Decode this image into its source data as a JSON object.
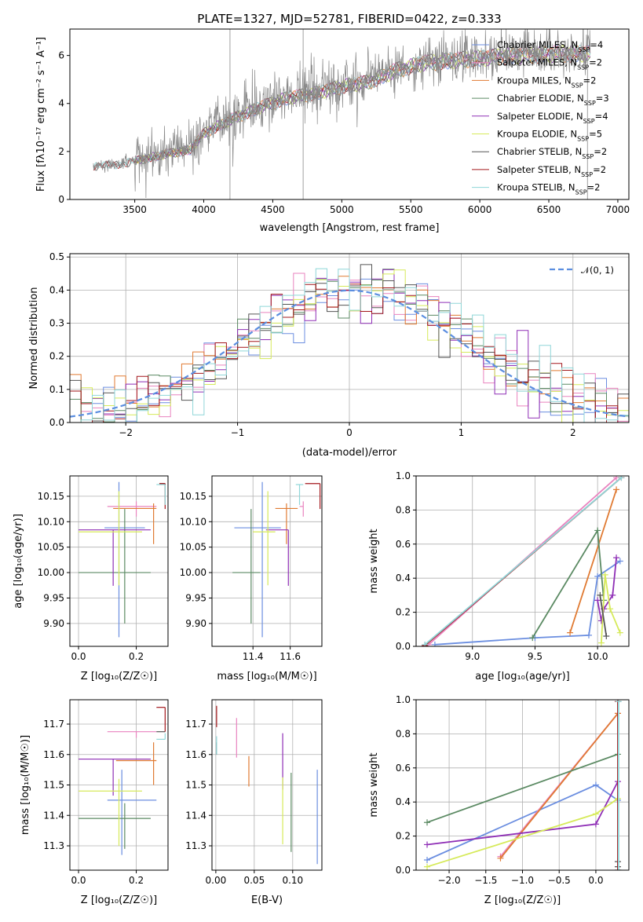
{
  "figure": {
    "title": "PLATE=1327, MJD=52781, FIBERID=0422, z=0.333"
  },
  "colors": {
    "Chabrier MILES": "#6b8ee0",
    "Salpeter MILES": "#e983bf",
    "Kroupa MILES": "#e07a32",
    "Chabrier ELODIE": "#5b8a63",
    "Salpeter ELODIE": "#8f2fb6",
    "Kroupa ELODIE": "#d6ea5a",
    "Chabrier STELIB": "#555555",
    "Salpeter STELIB": "#a3171b",
    "Kroupa STELIB": "#8fd6d8",
    "data": "#888888",
    "normal": "#5b8ee0"
  },
  "models": [
    {
      "name": "Chabrier MILES",
      "nssp": "4"
    },
    {
      "name": "Salpeter MILES",
      "nssp": "2"
    },
    {
      "name": "Kroupa MILES",
      "nssp": "2"
    },
    {
      "name": "Chabrier ELODIE",
      "nssp": "3"
    },
    {
      "name": "Salpeter ELODIE",
      "nssp": "4"
    },
    {
      "name": "Kroupa ELODIE",
      "nssp": "5"
    },
    {
      "name": "Chabrier STELIB",
      "nssp": "2"
    },
    {
      "name": "Salpeter STELIB",
      "nssp": "2"
    },
    {
      "name": "Kroupa STELIB",
      "nssp": "2"
    }
  ],
  "chart_data": [
    {
      "id": "spectrum",
      "type": "line",
      "xlabel": "wavelength [Angstrom, rest frame]",
      "ylabel": "Flux [fλ10⁻¹⁷ erg cm⁻² s⁻¹ A⁻¹]",
      "xlim": [
        3030,
        7080
      ],
      "ylim": [
        0,
        7.1
      ],
      "xticks": [
        "3500",
        "4000",
        "4500",
        "5000",
        "5500",
        "6000",
        "6500",
        "7000"
      ],
      "yticks": [
        "0",
        "2",
        "4",
        "6"
      ],
      "grid": false,
      "legend": "top-right",
      "data_range": [
        3200,
        6800
      ],
      "continuum": [
        [
          3200,
          1.4
        ],
        [
          3400,
          1.5
        ],
        [
          3550,
          1.7
        ],
        [
          3700,
          1.9
        ],
        [
          3900,
          2.1
        ],
        [
          4000,
          2.8
        ],
        [
          4200,
          3.4
        ],
        [
          4400,
          3.9
        ],
        [
          4600,
          4.3
        ],
        [
          4800,
          4.5
        ],
        [
          5000,
          4.8
        ],
        [
          5200,
          5.0
        ],
        [
          5400,
          5.5
        ],
        [
          5600,
          5.8
        ],
        [
          5800,
          5.9
        ],
        [
          6000,
          6.0
        ],
        [
          6200,
          6.1
        ],
        [
          6400,
          6.15
        ],
        [
          6600,
          6.2
        ],
        [
          6800,
          6.2
        ]
      ],
      "model_start": [
        3500,
        3500,
        3500,
        3500,
        3500,
        3500,
        3200,
        3200,
        3200
      ]
    },
    {
      "id": "residuals",
      "type": "histogram",
      "xlabel": "(data-model)/error",
      "ylabel": "Normed distribution",
      "xlim": [
        -2.5,
        2.5
      ],
      "ylim": [
        0,
        0.51
      ],
      "xticks": [
        "−2",
        "−1",
        "0",
        "1",
        "2"
      ],
      "xtick_values": [
        -2,
        -1,
        0,
        1,
        2
      ],
      "yticks": [
        "0.0",
        "0.1",
        "0.2",
        "0.3",
        "0.4",
        "0.5"
      ],
      "grid": true,
      "legend": "top-right",
      "normal_label": "𝒩(0, 1)",
      "bin_width": 0.1
    },
    {
      "id": "age-vs-Z",
      "type": "errorbar",
      "xlabel": "Z [log₁₀(Z/Z☉)]",
      "ylabel": "age  [log₁₀(age/yr)]",
      "xlim": [
        -0.03,
        0.31
      ],
      "ylim": [
        9.855,
        10.19
      ],
      "xticks": [
        "0.0",
        "0.2"
      ],
      "xtick_values": [
        0,
        0.2
      ],
      "yticks": [
        "9.90",
        "9.95",
        "10.00",
        "10.05",
        "10.10",
        "10.15"
      ],
      "ytick_values": [
        9.9,
        9.95,
        10.0,
        10.05,
        10.1,
        10.15
      ],
      "points": [
        {
          "model": "Chabrier MILES",
          "x": 0.14,
          "xerr": [
            0.05,
            0.09
          ],
          "y": 10.088,
          "yerr": [
            0.215,
            0.09
          ]
        },
        {
          "model": "Salpeter MILES",
          "x": 0.2,
          "xerr": [
            0.1,
            0.07
          ],
          "y": 10.13,
          "yerr": [
            0.02,
            0.01
          ]
        },
        {
          "model": "Kroupa MILES",
          "x": 0.26,
          "xerr": [
            0.14,
            0.01
          ],
          "y": 10.126,
          "yerr": [
            0.07,
            0.01
          ]
        },
        {
          "model": "Chabrier ELODIE",
          "x": 0.16,
          "xerr": [
            0.16,
            0.09
          ],
          "y": 10.0,
          "yerr": [
            0.1,
            0.125
          ]
        },
        {
          "model": "Salpeter ELODIE",
          "x": 0.12,
          "xerr": [
            0.12,
            0.13
          ],
          "y": 10.084,
          "yerr": [
            0.11,
            0.0
          ]
        },
        {
          "model": "Kroupa ELODIE",
          "x": 0.14,
          "xerr": [
            0.14,
            0.08
          ],
          "y": 10.08,
          "yerr": [
            0.105,
            0.08
          ]
        },
        {
          "model": "Chabrier STELIB",
          "x": 0.3,
          "xerr": [
            0.02,
            0.0
          ],
          "y": 10.175,
          "yerr": [
            0.0,
            0.0
          ]
        },
        {
          "model": "Salpeter STELIB",
          "x": 0.3,
          "xerr": [
            0.02,
            0.0
          ],
          "y": 10.175,
          "yerr": [
            0.05,
            0.0
          ]
        },
        {
          "model": "Kroupa STELIB",
          "x": 0.3,
          "xerr": [
            0.03,
            0.0
          ],
          "y": 10.173,
          "yerr": [
            0.04,
            0.0
          ]
        }
      ]
    },
    {
      "id": "age-vs-mass",
      "type": "errorbar",
      "xlabel": "mass [log₁₀(M/M☉)]",
      "ylabel": "",
      "xlim": [
        11.18,
        11.77
      ],
      "ylim": [
        9.855,
        10.19
      ],
      "xticks": [
        "11.4",
        "11.6"
      ],
      "xtick_values": [
        11.4,
        11.6
      ],
      "yticks": [
        "9.90",
        "9.95",
        "10.00",
        "10.05",
        "10.10",
        "10.15"
      ],
      "ytick_values": [
        9.9,
        9.95,
        10.0,
        10.05,
        10.1,
        10.15
      ],
      "points": [
        {
          "model": "Chabrier MILES",
          "x": 11.45,
          "xerr": [
            0.15,
            0.1
          ],
          "y": 10.088,
          "yerr": [
            0.215,
            0.09
          ]
        },
        {
          "model": "Salpeter MILES",
          "x": 11.67,
          "xerr": [
            0.02,
            0.0
          ],
          "y": 10.13,
          "yerr": [
            0.02,
            0.01
          ]
        },
        {
          "model": "Kroupa MILES",
          "x": 11.58,
          "xerr": [
            0.06,
            0.06
          ],
          "y": 10.126,
          "yerr": [
            0.07,
            0.01
          ]
        },
        {
          "model": "Chabrier ELODIE",
          "x": 11.39,
          "xerr": [
            0.1,
            0.05
          ],
          "y": 10.0,
          "yerr": [
            0.1,
            0.125
          ]
        },
        {
          "model": "Salpeter ELODIE",
          "x": 11.59,
          "xerr": [
            0.12,
            0.0
          ],
          "y": 10.084,
          "yerr": [
            0.11,
            0.0
          ]
        },
        {
          "model": "Kroupa ELODIE",
          "x": 11.48,
          "xerr": [
            0.08,
            0.04
          ],
          "y": 10.08,
          "yerr": [
            0.105,
            0.08
          ]
        },
        {
          "model": "Chabrier STELIB",
          "x": 11.68,
          "xerr": [
            0.0,
            0.0
          ],
          "y": 10.175,
          "yerr": [
            0.0,
            0.0
          ]
        },
        {
          "model": "Salpeter STELIB",
          "x": 11.76,
          "xerr": [
            0.08,
            0.0
          ],
          "y": 10.175,
          "yerr": [
            0.05,
            0.0
          ]
        },
        {
          "model": "Kroupa STELIB",
          "x": 11.65,
          "xerr": [
            0.02,
            0.02
          ],
          "y": 10.173,
          "yerr": [
            0.04,
            0.0
          ]
        }
      ]
    },
    {
      "id": "weight-vs-age",
      "type": "line",
      "xlabel": "age  [log₁₀(age/yr)]",
      "ylabel": "mass weight",
      "xlim": [
        8.55,
        10.25
      ],
      "ylim": [
        0,
        1.0
      ],
      "xticks": [
        "9.0",
        "9.5",
        "10.0"
      ],
      "xtick_values": [
        9.0,
        9.5,
        10.0
      ],
      "yticks": [
        "0.0",
        "0.2",
        "0.4",
        "0.6",
        "0.8",
        "1.0"
      ],
      "ytick_values": [
        0,
        0.2,
        0.4,
        0.6,
        0.8,
        1.0
      ],
      "grid": true,
      "series": [
        {
          "model": "Chabrier MILES",
          "x": [
            8.7,
            9.5,
            9.93,
            10.0,
            10.18
          ],
          "y": [
            0.01,
            0.05,
            0.065,
            0.41,
            0.5
          ]
        },
        {
          "model": "Salpeter MILES",
          "x": [
            8.65,
            10.15
          ],
          "y": [
            0.01,
            0.99
          ]
        },
        {
          "model": "Kroupa MILES",
          "x": [
            9.78,
            10.15
          ],
          "y": [
            0.08,
            0.92
          ]
        },
        {
          "model": "Chabrier ELODIE",
          "x": [
            9.48,
            10.0,
            10.05
          ],
          "y": [
            0.05,
            0.68,
            0.27
          ]
        },
        {
          "model": "Salpeter ELODIE",
          "x": [
            10.0,
            10.03,
            10.05,
            10.12,
            10.15
          ],
          "y": [
            0.27,
            0.15,
            0.22,
            0.3,
            0.52
          ]
        },
        {
          "model": "Kroupa ELODIE",
          "x": [
            10.03,
            10.06,
            10.1,
            10.18
          ],
          "y": [
            0.02,
            0.42,
            0.22,
            0.08
          ]
        },
        {
          "model": "Chabrier STELIB",
          "x": [
            10.02,
            10.07
          ],
          "y": [
            0.3,
            0.06
          ]
        },
        {
          "model": "Salpeter STELIB",
          "x": [
            8.62,
            10.19
          ],
          "y": [
            0.005,
            0.99
          ]
        },
        {
          "model": "Kroupa STELIB",
          "x": [
            8.62,
            10.19
          ],
          "y": [
            0.01,
            0.99
          ]
        }
      ]
    },
    {
      "id": "mass-vs-Z",
      "type": "errorbar",
      "xlabel": "Z [log₁₀(Z/Z☉)]",
      "ylabel": "mass [log₁₀(M/M☉)]",
      "xlim": [
        -0.03,
        0.31
      ],
      "ylim": [
        11.22,
        11.78
      ],
      "xticks": [
        "0.0",
        "0.2"
      ],
      "xtick_values": [
        0,
        0.2
      ],
      "yticks": [
        "11.3",
        "11.4",
        "11.5",
        "11.6",
        "11.7"
      ],
      "ytick_values": [
        11.3,
        11.4,
        11.5,
        11.6,
        11.7
      ],
      "points": [
        {
          "model": "Chabrier MILES",
          "x": 0.15,
          "xerr": [
            0.05,
            0.12
          ],
          "y": 11.45,
          "yerr": [
            0.18,
            0.1
          ]
        },
        {
          "model": "Salpeter MILES",
          "x": 0.2,
          "xerr": [
            0.1,
            0.07
          ],
          "y": 11.675,
          "yerr": [
            0.02,
            0.0
          ]
        },
        {
          "model": "Kroupa MILES",
          "x": 0.26,
          "xerr": [
            0.13,
            0.01
          ],
          "y": 11.58,
          "yerr": [
            0.08,
            0.06
          ]
        },
        {
          "model": "Chabrier ELODIE",
          "x": 0.16,
          "xerr": [
            0.16,
            0.09
          ],
          "y": 11.39,
          "yerr": [
            0.1,
            0.05
          ]
        },
        {
          "model": "Salpeter ELODIE",
          "x": 0.12,
          "xerr": [
            0.12,
            0.13
          ],
          "y": 11.585,
          "yerr": [
            0.12,
            0.0
          ]
        },
        {
          "model": "Kroupa ELODIE",
          "x": 0.14,
          "xerr": [
            0.14,
            0.08
          ],
          "y": 11.48,
          "yerr": [
            0.18,
            0.04
          ]
        },
        {
          "model": "Chabrier STELIB",
          "x": 0.3,
          "xerr": [
            0.03,
            0.0
          ],
          "y": 11.675,
          "yerr": [
            0.0,
            0.0
          ]
        },
        {
          "model": "Salpeter STELIB",
          "x": 0.3,
          "xerr": [
            0.03,
            0.0
          ],
          "y": 11.755,
          "yerr": [
            0.08,
            0.0
          ]
        },
        {
          "model": "Kroupa STELIB",
          "x": 0.3,
          "xerr": [
            0.03,
            0.0
          ],
          "y": 11.65,
          "yerr": [
            0.0,
            0.02
          ]
        }
      ]
    },
    {
      "id": "mass-vs-EBV",
      "type": "errorbar",
      "xlabel": "E(B-V)",
      "ylabel": "",
      "xlim": [
        -0.005,
        0.138
      ],
      "ylim": [
        11.22,
        11.78
      ],
      "xticks": [
        "0.00",
        "0.05",
        "0.10"
      ],
      "xtick_values": [
        0,
        0.05,
        0.1
      ],
      "yticks": [
        "11.3",
        "11.4",
        "11.5",
        "11.6",
        "11.7"
      ],
      "ytick_values": [
        11.3,
        11.4,
        11.5,
        11.6,
        11.7
      ],
      "points": [
        {
          "model": "Chabrier MILES",
          "x": 0.132,
          "xerr": [
            0,
            0
          ],
          "y": 11.4,
          "yerr": [
            0.16,
            0.15
          ]
        },
        {
          "model": "Salpeter MILES",
          "x": 0.027,
          "xerr": [
            0,
            0
          ],
          "y": 11.65,
          "yerr": [
            0.06,
            0.07
          ]
        },
        {
          "model": "Kroupa MILES",
          "x": 0.043,
          "xerr": [
            0,
            0
          ],
          "y": 11.545,
          "yerr": [
            0.05,
            0.05
          ]
        },
        {
          "model": "Chabrier ELODIE",
          "x": 0.098,
          "xerr": [
            0,
            0
          ],
          "y": 11.45,
          "yerr": [
            0.17,
            0.09
          ]
        },
        {
          "model": "Salpeter ELODIE",
          "x": 0.087,
          "xerr": [
            0,
            0
          ],
          "y": 11.575,
          "yerr": [
            0.09,
            0.095
          ]
        },
        {
          "model": "Kroupa ELODIE",
          "x": 0.087,
          "xerr": [
            0,
            0
          ],
          "y": 11.425,
          "yerr": [
            0.12,
            0.1
          ]
        },
        {
          "model": "Chabrier STELIB",
          "x": 0.001,
          "xerr": [
            0,
            0
          ],
          "y": 11.62,
          "yerr": [
            0.02,
            0.02
          ]
        },
        {
          "model": "Salpeter STELIB",
          "x": 0.001,
          "xerr": [
            0,
            0
          ],
          "y": 11.72,
          "yerr": [
            0.03,
            0.04
          ]
        },
        {
          "model": "Kroupa STELIB",
          "x": 0.001,
          "xerr": [
            0,
            0
          ],
          "y": 11.63,
          "yerr": [
            0.03,
            0.03
          ]
        }
      ]
    },
    {
      "id": "weight-vs-Z",
      "type": "line",
      "xlabel": "Z [log₁₀(Z/Z☉)]",
      "ylabel": "mass weight",
      "xlim": [
        -2.45,
        0.45
      ],
      "ylim": [
        0,
        1.0
      ],
      "xticks": [
        "−2.0",
        "−1.5",
        "−1.0",
        "−0.5",
        "0.0"
      ],
      "xtick_values": [
        -2.0,
        -1.5,
        -1.0,
        -0.5,
        0.0
      ],
      "yticks": [
        "0.0",
        "0.2",
        "0.4",
        "0.6",
        "0.8",
        "1.0"
      ],
      "ytick_values": [
        0,
        0.2,
        0.4,
        0.6,
        0.8,
        1.0
      ],
      "grid": true,
      "series": [
        {
          "model": "Chabrier MILES",
          "x": [
            -2.3,
            0.0,
            0.3
          ],
          "y": [
            0.06,
            0.5,
            0.41
          ]
        },
        {
          "model": "Salpeter MILES",
          "x": [
            -1.3,
            0.3
          ],
          "y": [
            0.08,
            0.92
          ]
        },
        {
          "model": "Kroupa MILES",
          "x": [
            -1.3,
            0.3
          ],
          "y": [
            0.07,
            0.92
          ]
        },
        {
          "model": "Chabrier ELODIE",
          "x": [
            -2.3,
            0.3
          ],
          "y": [
            0.28,
            0.68
          ]
        },
        {
          "model": "Salpeter ELODIE",
          "x": [
            -2.3,
            0.0,
            0.3
          ],
          "y": [
            0.15,
            0.27,
            0.52
          ]
        },
        {
          "model": "Kroupa ELODIE",
          "x": [
            -2.3,
            0.0,
            0.3
          ],
          "y": [
            0.02,
            0.33,
            0.42
          ]
        },
        {
          "model": "Chabrier STELIB",
          "x": [
            0.3,
            0.3
          ],
          "y": [
            0.05,
            0.02
          ]
        },
        {
          "model": "Salpeter STELIB",
          "x": [
            0.3,
            0.3
          ],
          "y": [
            0.0,
            0.99
          ]
        },
        {
          "model": "Kroupa STELIB",
          "x": [
            0.31,
            0.31
          ],
          "y": [
            0.0,
            0.99
          ]
        }
      ]
    }
  ]
}
